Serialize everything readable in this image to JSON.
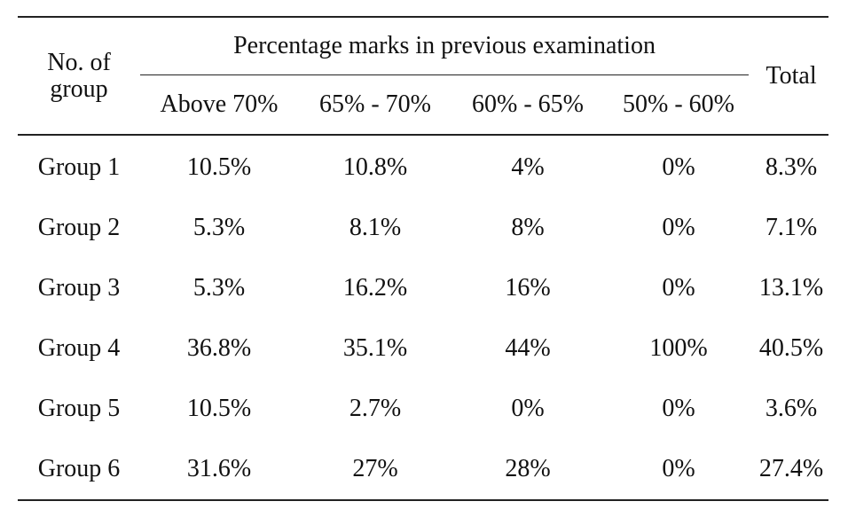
{
  "table": {
    "header": {
      "group_col_line1": "No. of",
      "group_col_line2": "group",
      "span_title": "Percentage marks in previous examination",
      "sub_columns": [
        "Above 70%",
        "65% - 70%",
        "60% - 65%",
        "50% - 60%"
      ],
      "total_col": "Total"
    },
    "rows": [
      {
        "group": "Group 1",
        "cells": [
          "10.5%",
          "10.8%",
          "4%",
          "0%"
        ],
        "total": "8.3%"
      },
      {
        "group": "Group 2",
        "cells": [
          "5.3%",
          "8.1%",
          "8%",
          "0%"
        ],
        "total": "7.1%"
      },
      {
        "group": "Group 3",
        "cells": [
          "5.3%",
          "16.2%",
          "16%",
          "0%"
        ],
        "total": "13.1%"
      },
      {
        "group": "Group 4",
        "cells": [
          "36.8%",
          "35.1%",
          "44%",
          "100%"
        ],
        "total": "40.5%"
      },
      {
        "group": "Group 5",
        "cells": [
          "10.5%",
          "2.7%",
          "0%",
          "0%"
        ],
        "total": "3.6%"
      },
      {
        "group": "Group 6",
        "cells": [
          "31.6%",
          "27%",
          "28%",
          "0%"
        ],
        "total": "27.4%"
      }
    ]
  }
}
